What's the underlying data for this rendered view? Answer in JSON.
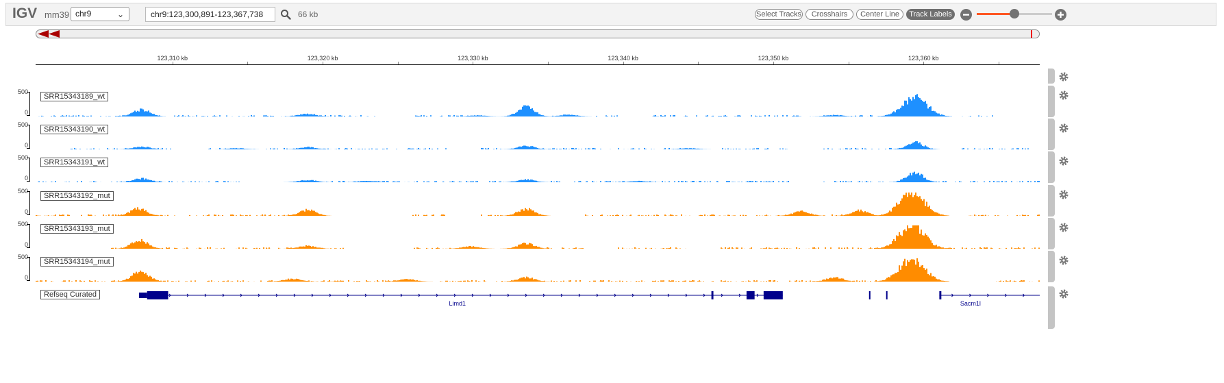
{
  "app": {
    "logo": "IGV",
    "genome": "mm39",
    "chromosome": "chr9",
    "locus": "chr9:123,300,891-123,367,738",
    "window_size": "66 kb"
  },
  "toolbar": {
    "select_tracks": "Select Tracks",
    "crosshairs": "Crosshairs",
    "center_line": "Center Line",
    "track_labels": "Track Labels",
    "zoom_level_fraction": 0.5
  },
  "ruler": {
    "start": 123300891,
    "end": 123367738,
    "ticks": [
      {
        "pos": 123310000,
        "label": "123,310 kb"
      },
      {
        "pos": 123320000,
        "label": "123,320 kb"
      },
      {
        "pos": 123330000,
        "label": "123,330 kb"
      },
      {
        "pos": 123340000,
        "label": "123,340 kb"
      },
      {
        "pos": 123350000,
        "label": "123,350 kb"
      },
      {
        "pos": 123360000,
        "label": "123,360 kb"
      }
    ]
  },
  "tracks": [
    {
      "name": "SRR15343189_wt",
      "color": "#1e90ff",
      "scale_max": "500",
      "scale_min": "0",
      "peaks": [
        [
          0.105,
          0.3
        ],
        [
          0.27,
          0.12
        ],
        [
          0.44,
          0.05
        ],
        [
          0.488,
          0.4
        ],
        [
          0.53,
          0.08
        ],
        [
          0.875,
          0.8
        ],
        [
          0.795,
          0.06
        ]
      ]
    },
    {
      "name": "SRR15343190_wt",
      "color": "#1e90ff",
      "scale_max": "500",
      "scale_min": "0",
      "peaks": [
        [
          0.105,
          0.12
        ],
        [
          0.27,
          0.1
        ],
        [
          0.488,
          0.15
        ],
        [
          0.875,
          0.3
        ],
        [
          0.2,
          0.05
        ],
        [
          0.65,
          0.05
        ]
      ]
    },
    {
      "name": "SRR15343191_wt",
      "color": "#1e90ff",
      "scale_max": "500",
      "scale_min": "0",
      "peaks": [
        [
          0.105,
          0.16
        ],
        [
          0.27,
          0.1
        ],
        [
          0.488,
          0.12
        ],
        [
          0.875,
          0.42
        ],
        [
          0.33,
          0.06
        ],
        [
          0.6,
          0.05
        ]
      ]
    },
    {
      "name": "SRR15343192_mut",
      "color": "#ff8c00",
      "scale_max": "500",
      "scale_min": "0",
      "peaks": [
        [
          0.102,
          0.3
        ],
        [
          0.27,
          0.25
        ],
        [
          0.27,
          0.15
        ],
        [
          0.488,
          0.3
        ],
        [
          0.762,
          0.2
        ],
        [
          0.82,
          0.22
        ],
        [
          0.872,
          1.0
        ]
      ]
    },
    {
      "name": "SRR15343193_mut",
      "color": "#ff8c00",
      "scale_max": "500",
      "scale_min": "0",
      "peaks": [
        [
          0.103,
          0.35
        ],
        [
          0.27,
          0.12
        ],
        [
          0.433,
          0.1
        ],
        [
          0.488,
          0.22
        ],
        [
          0.872,
          1.0
        ]
      ]
    },
    {
      "name": "SRR15343194_mut",
      "color": "#ff8c00",
      "scale_max": "500",
      "scale_min": "0",
      "peaks": [
        [
          0.104,
          0.45
        ],
        [
          0.255,
          0.12
        ],
        [
          0.37,
          0.1
        ],
        [
          0.488,
          0.18
        ],
        [
          0.795,
          0.18
        ],
        [
          0.872,
          1.0
        ]
      ]
    }
  ],
  "annotation_track": {
    "name": "Refseq Curated",
    "color": "#00008b",
    "genes": [
      {
        "name": "Limd1",
        "start_frac": 0.103,
        "end_frac": 0.744,
        "label_frac": 0.42,
        "blocks": [
          [
            0.103,
            0.111,
            0.6
          ],
          [
            0.111,
            0.132,
            1.0
          ],
          [
            0.83,
            0.831,
            1.0
          ],
          [
            0.847,
            0.848,
            1.0
          ],
          [
            0.673,
            0.675,
            1.0
          ],
          [
            0.708,
            0.716,
            1.0
          ],
          [
            0.725,
            0.744,
            1.0
          ],
          [
            0.737,
            0.744,
            1.0
          ]
        ]
      },
      {
        "name": "Sacm1l",
        "start_frac": 0.9,
        "end_frac": 1.0,
        "label_frac": 0.931,
        "blocks": [
          [
            0.9,
            0.902,
            1.0
          ]
        ]
      }
    ]
  }
}
